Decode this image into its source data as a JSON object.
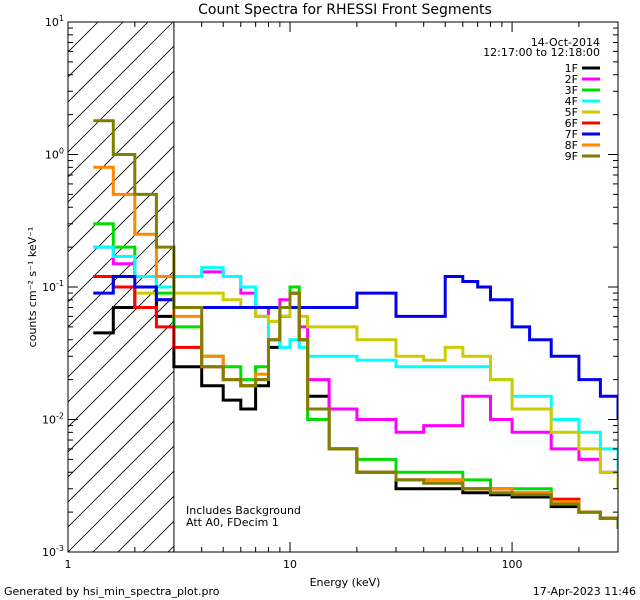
{
  "chart_data": {
    "type": "line",
    "title": "Count Spectra for RHESSI Front Segments",
    "xlabel": "Energy (keV)",
    "ylabel": "counts cm⁻² s⁻¹ keV⁻¹",
    "xscale": "log",
    "yscale": "log",
    "xlim": [
      1,
      300
    ],
    "ylim": [
      0.001,
      10
    ],
    "x_tick_labels": [
      {
        "value": 1,
        "label": "1"
      },
      {
        "value": 10,
        "label": "10"
      },
      {
        "value": 100,
        "label": "100"
      }
    ],
    "y_tick_labels": [
      {
        "value": 10,
        "mantissa": "10",
        "exp": "1"
      },
      {
        "value": 1,
        "mantissa": "10",
        "exp": "0"
      },
      {
        "value": 0.1,
        "mantissa": "10",
        "exp": "-1"
      },
      {
        "value": 0.01,
        "mantissa": "10",
        "exp": "-2"
      },
      {
        "value": 0.001,
        "mantissa": "10",
        "exp": "-3"
      }
    ],
    "hatched_region_kev": [
      1,
      3
    ],
    "annotations": {
      "date": "14-Oct-2014",
      "time_range": "12:17:00 to 12:18:00",
      "background_note": "Includes Background",
      "attenuator_note": "Att A0, FDecim 1"
    },
    "series": [
      {
        "name": "1F",
        "color": "#000000",
        "points": [
          [
            1.3,
            0.045
          ],
          [
            1.6,
            0.07
          ],
          [
            2.0,
            0.1
          ],
          [
            2.5,
            0.06
          ],
          [
            3.0,
            0.025
          ],
          [
            4,
            0.018
          ],
          [
            5,
            0.014
          ],
          [
            6,
            0.012
          ],
          [
            7,
            0.018
          ],
          [
            8,
            0.035
          ],
          [
            9,
            0.06
          ],
          [
            10,
            0.09
          ],
          [
            11,
            0.04
          ],
          [
            12,
            0.015
          ],
          [
            15,
            0.006
          ],
          [
            20,
            0.004
          ],
          [
            30,
            0.003
          ],
          [
            40,
            0.003
          ],
          [
            60,
            0.0028
          ],
          [
            80,
            0.0027
          ],
          [
            100,
            0.0026
          ],
          [
            150,
            0.0022
          ],
          [
            200,
            0.002
          ],
          [
            250,
            0.0018
          ],
          [
            300,
            0.0015
          ]
        ]
      },
      {
        "name": "2F",
        "color": "#ff00ff",
        "points": [
          [
            1.3,
            0.2
          ],
          [
            1.6,
            0.15
          ],
          [
            2.0,
            0.12
          ],
          [
            2.5,
            0.1
          ],
          [
            3.0,
            0.12
          ],
          [
            4,
            0.13
          ],
          [
            5,
            0.12
          ],
          [
            6,
            0.09
          ],
          [
            7,
            0.06
          ],
          [
            8,
            0.07
          ],
          [
            9,
            0.08
          ],
          [
            10,
            0.09
          ],
          [
            11,
            0.05
          ],
          [
            12,
            0.02
          ],
          [
            15,
            0.012
          ],
          [
            20,
            0.01
          ],
          [
            30,
            0.008
          ],
          [
            40,
            0.009
          ],
          [
            60,
            0.015
          ],
          [
            80,
            0.01
          ],
          [
            100,
            0.008
          ],
          [
            150,
            0.006
          ],
          [
            200,
            0.005
          ],
          [
            250,
            0.004
          ],
          [
            300,
            0.003
          ]
        ]
      },
      {
        "name": "3F",
        "color": "#00dd00",
        "points": [
          [
            1.3,
            0.3
          ],
          [
            1.6,
            0.2
          ],
          [
            2.0,
            0.12
          ],
          [
            2.5,
            0.09
          ],
          [
            3.0,
            0.05
          ],
          [
            4,
            0.03
          ],
          [
            5,
            0.025
          ],
          [
            6,
            0.02
          ],
          [
            7,
            0.025
          ],
          [
            8,
            0.04
          ],
          [
            9,
            0.07
          ],
          [
            10,
            0.1
          ],
          [
            11,
            0.04
          ],
          [
            12,
            0.01
          ],
          [
            15,
            0.006
          ],
          [
            20,
            0.005
          ],
          [
            30,
            0.004
          ],
          [
            40,
            0.004
          ],
          [
            60,
            0.0035
          ],
          [
            80,
            0.003
          ],
          [
            100,
            0.003
          ],
          [
            150,
            0.0025
          ],
          [
            200,
            0.002
          ],
          [
            250,
            0.0018
          ],
          [
            300,
            0.0015
          ]
        ]
      },
      {
        "name": "4F",
        "color": "#00ffff",
        "points": [
          [
            1.3,
            0.2
          ],
          [
            1.6,
            0.17
          ],
          [
            2.0,
            0.12
          ],
          [
            2.5,
            0.1
          ],
          [
            3.0,
            0.12
          ],
          [
            4,
            0.14
          ],
          [
            5,
            0.12
          ],
          [
            6,
            0.1
          ],
          [
            7,
            0.06
          ],
          [
            8,
            0.04
          ],
          [
            9,
            0.035
          ],
          [
            10,
            0.04
          ],
          [
            11,
            0.035
          ],
          [
            12,
            0.03
          ],
          [
            15,
            0.03
          ],
          [
            20,
            0.028
          ],
          [
            30,
            0.025
          ],
          [
            40,
            0.025
          ],
          [
            60,
            0.025
          ],
          [
            80,
            0.02
          ],
          [
            100,
            0.015
          ],
          [
            150,
            0.01
          ],
          [
            200,
            0.008
          ],
          [
            250,
            0.006
          ],
          [
            300,
            0.004
          ]
        ]
      },
      {
        "name": "5F",
        "color": "#cccc00",
        "points": [
          [
            1.3,
            0.12
          ],
          [
            1.6,
            0.1
          ],
          [
            2.0,
            0.09
          ],
          [
            2.5,
            0.08
          ],
          [
            3.0,
            0.09
          ],
          [
            4,
            0.09
          ],
          [
            5,
            0.08
          ],
          [
            6,
            0.07
          ],
          [
            7,
            0.06
          ],
          [
            8,
            0.055
          ],
          [
            9,
            0.06
          ],
          [
            10,
            0.07
          ],
          [
            11,
            0.06
          ],
          [
            12,
            0.05
          ],
          [
            15,
            0.05
          ],
          [
            20,
            0.04
          ],
          [
            30,
            0.03
          ],
          [
            40,
            0.028
          ],
          [
            50,
            0.035
          ],
          [
            60,
            0.03
          ],
          [
            80,
            0.02
          ],
          [
            100,
            0.012
          ],
          [
            150,
            0.008
          ],
          [
            200,
            0.006
          ],
          [
            250,
            0.004
          ],
          [
            300,
            0.003
          ]
        ]
      },
      {
        "name": "6F",
        "color": "#ff0000",
        "points": [
          [
            1.3,
            0.12
          ],
          [
            1.6,
            0.1
          ],
          [
            2.0,
            0.07
          ],
          [
            2.5,
            0.05
          ],
          [
            3.0,
            0.035
          ],
          [
            4,
            0.025
          ],
          [
            5,
            0.02
          ],
          [
            6,
            0.018
          ],
          [
            7,
            0.02
          ],
          [
            8,
            0.04
          ],
          [
            9,
            0.07
          ],
          [
            10,
            0.09
          ],
          [
            11,
            0.04
          ],
          [
            12,
            0.012
          ],
          [
            15,
            0.006
          ],
          [
            20,
            0.004
          ],
          [
            30,
            0.0035
          ],
          [
            40,
            0.0035
          ],
          [
            60,
            0.003
          ],
          [
            80,
            0.003
          ],
          [
            100,
            0.0028
          ],
          [
            150,
            0.0025
          ],
          [
            200,
            0.002
          ],
          [
            250,
            0.0018
          ],
          [
            300,
            0.0015
          ]
        ]
      },
      {
        "name": "7F",
        "color": "#0000ee",
        "points": [
          [
            1.3,
            0.09
          ],
          [
            1.6,
            0.12
          ],
          [
            2.0,
            0.1
          ],
          [
            2.5,
            0.08
          ],
          [
            3.0,
            0.07
          ],
          [
            20,
            0.09
          ],
          [
            30,
            0.06
          ],
          [
            40,
            0.06
          ],
          [
            50,
            0.12
          ],
          [
            60,
            0.11
          ],
          [
            70,
            0.1
          ],
          [
            80,
            0.08
          ],
          [
            100,
            0.05
          ],
          [
            120,
            0.04
          ],
          [
            150,
            0.03
          ],
          [
            200,
            0.02
          ],
          [
            250,
            0.015
          ],
          [
            300,
            0.01
          ]
        ]
      },
      {
        "name": "8F",
        "color": "#ff8800",
        "points": [
          [
            1.3,
            0.8
          ],
          [
            1.6,
            0.5
          ],
          [
            2.0,
            0.25
          ],
          [
            2.5,
            0.12
          ],
          [
            3.0,
            0.06
          ],
          [
            4,
            0.03
          ],
          [
            5,
            0.02
          ],
          [
            6,
            0.018
          ],
          [
            7,
            0.022
          ],
          [
            8,
            0.04
          ],
          [
            9,
            0.07
          ],
          [
            10,
            0.09
          ],
          [
            11,
            0.04
          ],
          [
            12,
            0.012
          ],
          [
            15,
            0.006
          ],
          [
            20,
            0.004
          ],
          [
            30,
            0.0035
          ],
          [
            40,
            0.0035
          ],
          [
            60,
            0.003
          ],
          [
            80,
            0.003
          ],
          [
            100,
            0.0028
          ],
          [
            150,
            0.0024
          ],
          [
            200,
            0.002
          ],
          [
            250,
            0.0018
          ],
          [
            300,
            0.0015
          ]
        ]
      },
      {
        "name": "9F",
        "color": "#808000",
        "points": [
          [
            1.3,
            1.8
          ],
          [
            1.6,
            1.0
          ],
          [
            2.0,
            0.5
          ],
          [
            2.5,
            0.2
          ],
          [
            3.0,
            0.07
          ],
          [
            4,
            0.025
          ],
          [
            5,
            0.02
          ],
          [
            6,
            0.018
          ],
          [
            7,
            0.02
          ],
          [
            8,
            0.04
          ],
          [
            9,
            0.07
          ],
          [
            10,
            0.09
          ],
          [
            11,
            0.04
          ],
          [
            12,
            0.012
          ],
          [
            15,
            0.006
          ],
          [
            20,
            0.004
          ],
          [
            30,
            0.0035
          ],
          [
            40,
            0.0033
          ],
          [
            60,
            0.003
          ],
          [
            80,
            0.0028
          ],
          [
            100,
            0.0027
          ],
          [
            150,
            0.0023
          ],
          [
            200,
            0.002
          ],
          [
            250,
            0.0018
          ],
          [
            300,
            0.0015
          ]
        ]
      }
    ]
  },
  "footer": {
    "generated_by": "Generated by hsi_min_spectra_plot.pro",
    "timestamp": "17-Apr-2023 11:46"
  }
}
